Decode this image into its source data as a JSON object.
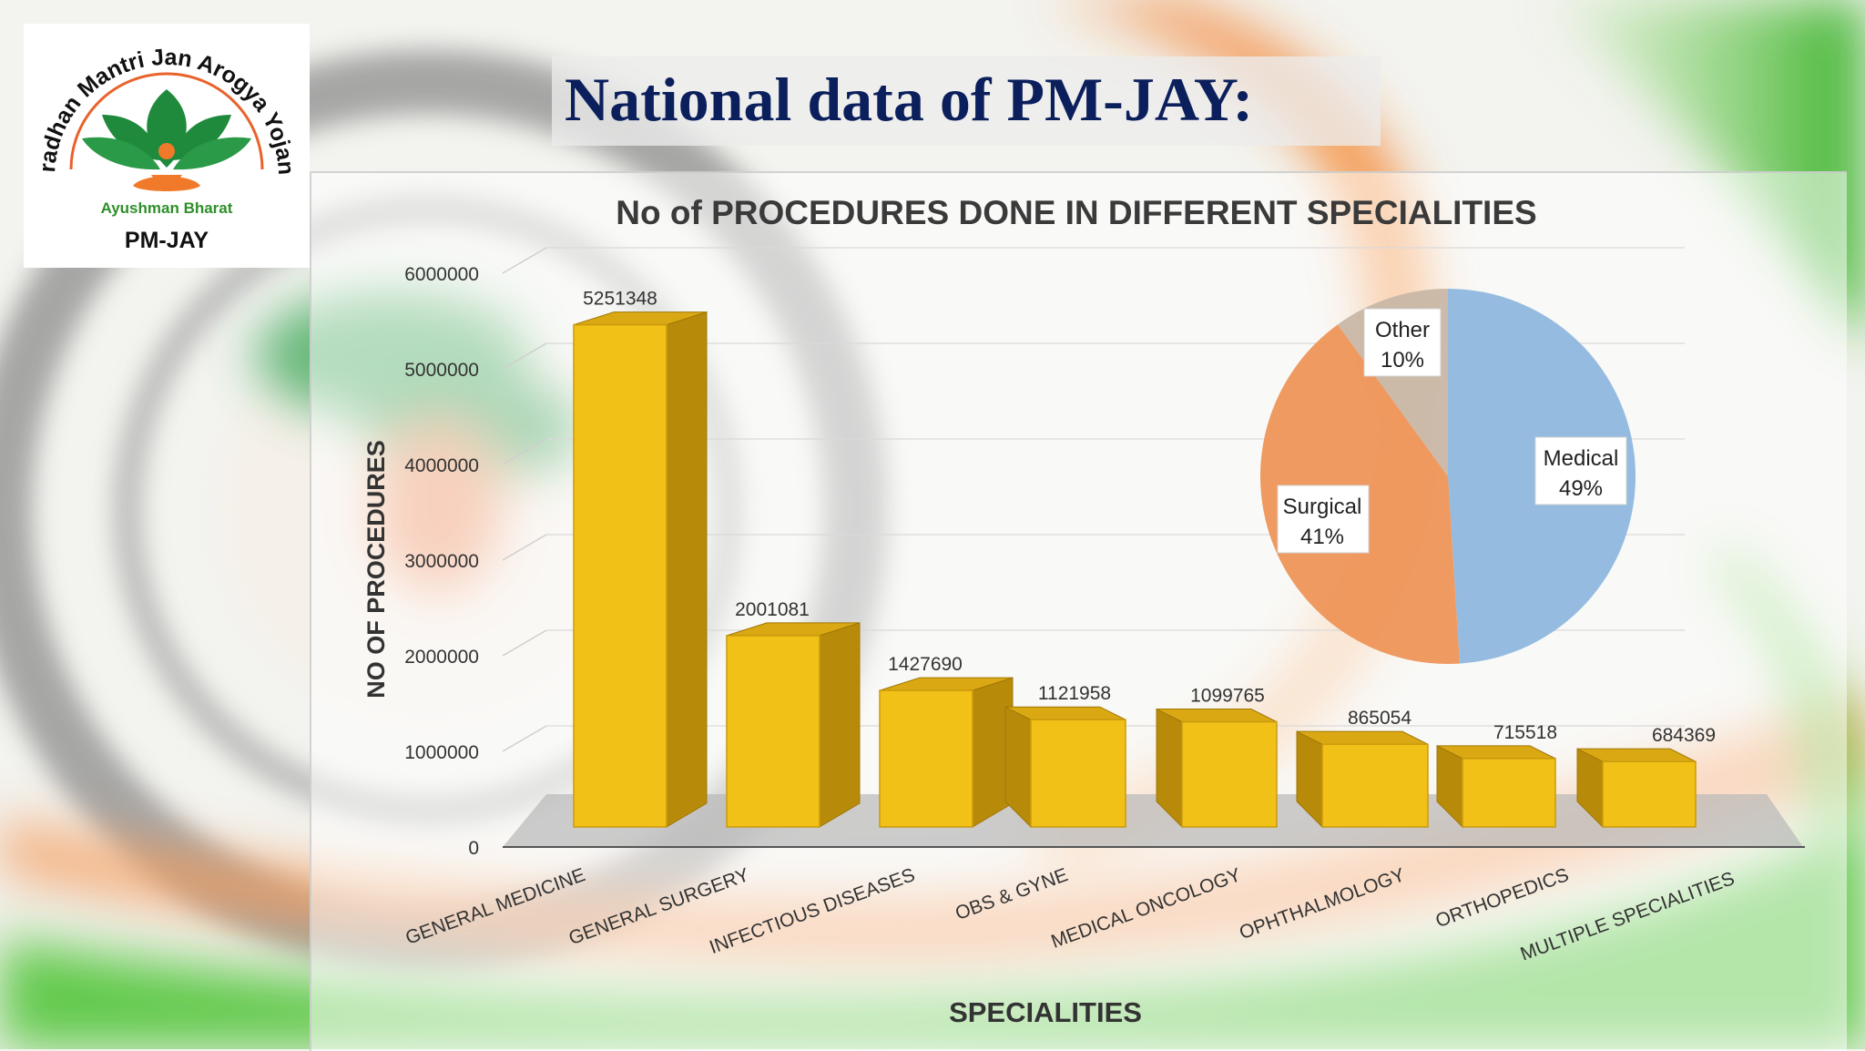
{
  "header": {
    "title": "National data of PM-JAY:",
    "logo": {
      "arc_text": "Pradhan Mantri Jan Arogya Yojana",
      "subtitle": "Ayushman Bharat",
      "brand": "PM-JAY"
    }
  },
  "colors": {
    "bar": "#f2c117",
    "bar_side": "#b88a0a",
    "bar_top": "#d9a812",
    "title": "#0b1f5c",
    "medical": "#8fb8de",
    "surgical": "#ee9559",
    "other": "#c9b7a6",
    "saffron": "#f47a1f",
    "green": "#3dbb2a"
  },
  "chart_data": [
    {
      "type": "bar",
      "title": "No of PROCEDURES DONE IN DIFFERENT SPECIALITIES",
      "xlabel": "SPECIALITIES",
      "ylabel": "NO OF  PROCEDURES",
      "ylim": [
        0,
        6000000
      ],
      "yticks": [
        0,
        1000000,
        2000000,
        3000000,
        4000000,
        5000000,
        6000000
      ],
      "ytick_labels": [
        "0",
        "1000000",
        "2000000",
        "3000000",
        "4000000",
        "5000000",
        "6000000"
      ],
      "grid": true,
      "categories": [
        "GENERAL MEDICINE",
        "GENERAL SURGERY",
        "INFECTIOUS DISEASES",
        "OBS & GYNE",
        "MEDICAL ONCOLOGY",
        "OPHTHALMOLOGY",
        "ORTHOPEDICS",
        "MULTIPLE SPECIALITIES"
      ],
      "values": [
        5251348,
        2001081,
        1427690,
        1121958,
        1099765,
        865054,
        715518,
        684369
      ],
      "data_labels": [
        "5251348",
        "2001081",
        "1427690",
        "1121958",
        "1099765",
        "865054",
        "715518",
        "684369"
      ]
    },
    {
      "type": "pie",
      "slices": [
        {
          "label": "Medical",
          "value": 49,
          "pct_label": "49%"
        },
        {
          "label": "Surgical",
          "value": 41,
          "pct_label": "41%"
        },
        {
          "label": "Other",
          "value": 10,
          "pct_label": "10%"
        }
      ]
    }
  ]
}
